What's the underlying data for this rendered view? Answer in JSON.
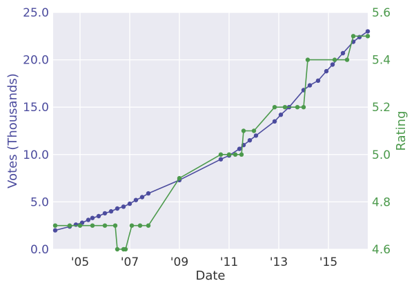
{
  "chart_data": {
    "type": "line",
    "xlabel": "Date",
    "x_ticks": [
      "'05",
      "'07",
      "'09",
      "'11",
      "'13",
      "'15"
    ],
    "x_tick_years": [
      2005,
      2007,
      2009,
      2011,
      2013,
      2015
    ],
    "xlim": [
      "2003-12-01",
      "2016-08-01"
    ],
    "grid": true,
    "background": "#eaeaf2",
    "left_axis": {
      "label": "Votes (Thousands)",
      "color": "#4c4c9e",
      "ylim": [
        0,
        25
      ],
      "ticks": [
        "0.0",
        "5.0",
        "10.0",
        "15.0",
        "20.0",
        "25.0"
      ]
    },
    "right_axis": {
      "label": "Rating",
      "color": "#4c9a4c",
      "ylim": [
        4.6,
        5.6
      ],
      "ticks": [
        "4.6",
        "4.8",
        "5.0",
        "5.2",
        "5.4",
        "5.6"
      ]
    },
    "series": [
      {
        "axis": "left",
        "color": "#4c4c9e",
        "x": [
          "2004-01-01",
          "2004-08-01",
          "2004-11-01",
          "2005-02-01",
          "2005-05-01",
          "2005-07-01",
          "2005-10-01",
          "2006-01-01",
          "2006-04-01",
          "2006-07-01",
          "2006-10-01",
          "2007-01-01",
          "2007-04-01",
          "2007-07-01",
          "2007-10-01",
          "2009-01-01",
          "2010-09-01",
          "2011-01-01",
          "2011-06-01",
          "2011-08-01",
          "2011-11-01",
          "2012-02-01",
          "2012-11-01",
          "2013-02-01",
          "2013-06-01",
          "2014-01-01",
          "2014-04-01",
          "2014-08-01",
          "2014-12-01",
          "2015-03-01",
          "2015-08-01",
          "2016-01-01",
          "2016-04-01",
          "2016-08-01"
        ],
        "values": [
          2.0,
          2.4,
          2.6,
          2.8,
          3.1,
          3.3,
          3.5,
          3.8,
          4.0,
          4.3,
          4.5,
          4.8,
          5.2,
          5.5,
          5.9,
          7.3,
          9.5,
          9.9,
          10.6,
          11.0,
          11.5,
          12.0,
          13.5,
          14.2,
          15.0,
          16.8,
          17.3,
          17.8,
          18.8,
          19.5,
          20.7,
          21.9,
          22.4,
          23.0
        ]
      },
      {
        "axis": "right",
        "color": "#4c9a4c",
        "x": [
          "2004-01-01",
          "2004-08-01",
          "2005-01-01",
          "2005-07-01",
          "2006-01-01",
          "2006-06-01",
          "2006-07-01",
          "2006-10-01",
          "2006-11-01",
          "2007-02-01",
          "2007-06-01",
          "2007-10-01",
          "2009-01-01",
          "2010-09-01",
          "2011-01-01",
          "2011-04-01",
          "2011-07-01",
          "2011-08-01",
          "2012-01-01",
          "2012-11-01",
          "2013-04-01",
          "2013-10-01",
          "2014-01-01",
          "2014-03-01",
          "2015-04-01",
          "2015-10-01",
          "2016-01-01",
          "2016-08-01"
        ],
        "values": [
          4.7,
          4.7,
          4.7,
          4.7,
          4.7,
          4.7,
          4.6,
          4.6,
          4.6,
          4.7,
          4.7,
          4.7,
          4.9,
          5.0,
          5.0,
          5.0,
          5.0,
          5.1,
          5.1,
          5.2,
          5.2,
          5.2,
          5.2,
          5.4,
          5.4,
          5.4,
          5.5,
          5.5
        ]
      }
    ]
  }
}
